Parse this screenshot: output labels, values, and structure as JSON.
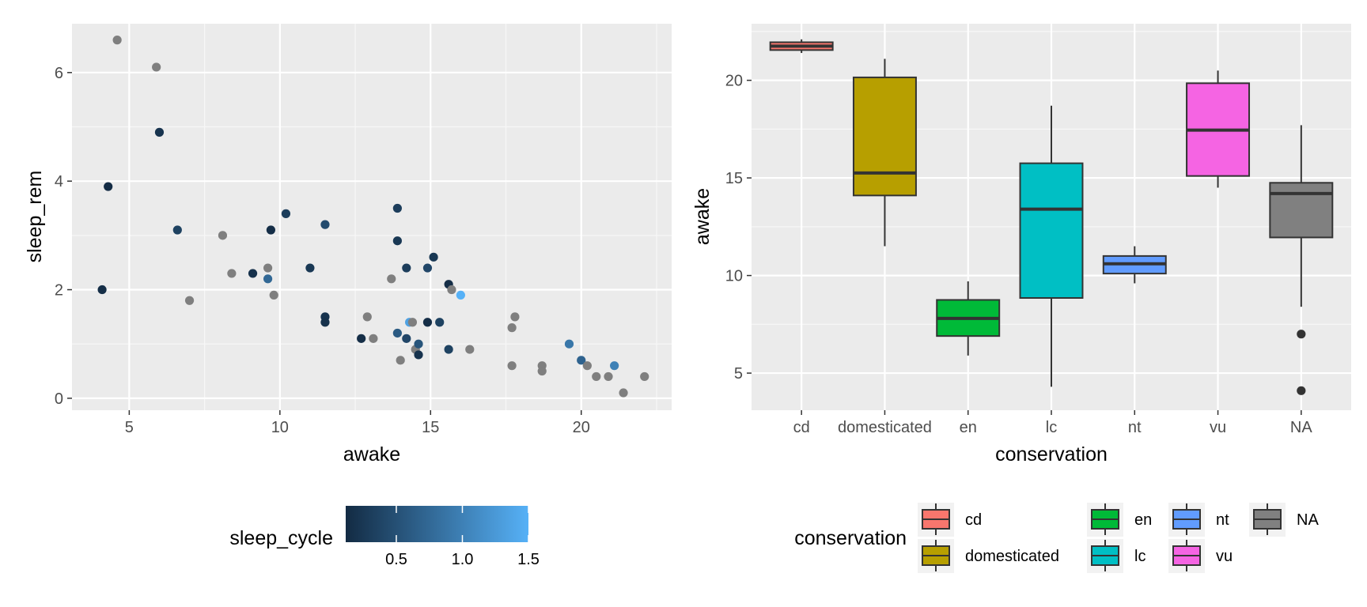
{
  "chart_data": [
    {
      "type": "scatter",
      "xlabel": "awake",
      "ylabel": "sleep_rem",
      "xlim": [
        3.1,
        23.0
      ],
      "ylim": [
        -0.22,
        6.9
      ],
      "x_ticks": [
        5,
        10,
        15,
        20
      ],
      "y_ticks": [
        0,
        2,
        4,
        6
      ],
      "grid": true,
      "colorbar": {
        "title": "sleep_cycle",
        "min": 0.117,
        "max": 1.5,
        "ticks": [
          0.5,
          1.0,
          1.5
        ],
        "tick_labels": [
          "0.5",
          "1.0",
          "1.5"
        ],
        "low_color": "#132B43",
        "high_color": "#56B1F7",
        "na_color": "#7F7F7F",
        "position": "bottom"
      },
      "points": [
        {
          "x": 4.1,
          "y": 2.0,
          "c": 0.15
        },
        {
          "x": 4.3,
          "y": 3.9,
          "c": 0.13
        },
        {
          "x": 4.6,
          "y": 6.6,
          "c": null
        },
        {
          "x": 5.9,
          "y": 6.1,
          "c": null
        },
        {
          "x": 6.0,
          "y": 4.9,
          "c": 0.2
        },
        {
          "x": 6.6,
          "y": 3.1,
          "c": 0.35
        },
        {
          "x": 7.0,
          "y": 1.8,
          "c": null
        },
        {
          "x": 8.1,
          "y": 3.0,
          "c": null
        },
        {
          "x": 8.4,
          "y": 2.3,
          "c": null
        },
        {
          "x": 9.1,
          "y": 2.3,
          "c": 0.18
        },
        {
          "x": 9.6,
          "y": 2.4,
          "c": null
        },
        {
          "x": 9.6,
          "y": 2.2,
          "c": 0.75
        },
        {
          "x": 9.7,
          "y": 3.1,
          "c": 0.15
        },
        {
          "x": 9.8,
          "y": 1.9,
          "c": null
        },
        {
          "x": 10.2,
          "y": 3.4,
          "c": 0.3
        },
        {
          "x": 11.0,
          "y": 2.4,
          "c": 0.25
        },
        {
          "x": 11.5,
          "y": 3.2,
          "c": 0.45
        },
        {
          "x": 11.5,
          "y": 1.5,
          "c": 0.2
        },
        {
          "x": 11.5,
          "y": 1.4,
          "c": 0.18
        },
        {
          "x": 12.7,
          "y": 1.1,
          "c": 0.15
        },
        {
          "x": 12.9,
          "y": 1.5,
          "c": null
        },
        {
          "x": 13.1,
          "y": 1.1,
          "c": null
        },
        {
          "x": 13.7,
          "y": 2.2,
          "c": null
        },
        {
          "x": 13.9,
          "y": 3.5,
          "c": 0.3
        },
        {
          "x": 13.9,
          "y": 2.9,
          "c": 0.25
        },
        {
          "x": 13.9,
          "y": 1.2,
          "c": 0.6
        },
        {
          "x": 14.0,
          "y": 0.7,
          "c": null
        },
        {
          "x": 14.2,
          "y": 2.4,
          "c": 0.3
        },
        {
          "x": 14.2,
          "y": 1.1,
          "c": 0.4
        },
        {
          "x": 14.3,
          "y": 1.4,
          "c": 1.35
        },
        {
          "x": 14.4,
          "y": 1.4,
          "c": null
        },
        {
          "x": 14.5,
          "y": 0.9,
          "c": null
        },
        {
          "x": 14.6,
          "y": 1.0,
          "c": 0.55
        },
        {
          "x": 14.6,
          "y": 0.8,
          "c": 0.2
        },
        {
          "x": 14.9,
          "y": 1.4,
          "c": 0.15
        },
        {
          "x": 14.9,
          "y": 2.4,
          "c": 0.4
        },
        {
          "x": 15.1,
          "y": 2.6,
          "c": 0.25
        },
        {
          "x": 15.3,
          "y": 1.4,
          "c": 0.35
        },
        {
          "x": 15.6,
          "y": 2.1,
          "c": 0.15
        },
        {
          "x": 15.6,
          "y": 0.9,
          "c": 0.35
        },
        {
          "x": 15.7,
          "y": 2.0,
          "c": null
        },
        {
          "x": 16.0,
          "y": 1.9,
          "c": 1.5
        },
        {
          "x": 16.3,
          "y": 0.9,
          "c": null
        },
        {
          "x": 17.7,
          "y": 1.3,
          "c": null
        },
        {
          "x": 17.7,
          "y": 0.6,
          "c": null
        },
        {
          "x": 17.8,
          "y": 1.5,
          "c": null
        },
        {
          "x": 18.7,
          "y": 0.6,
          "c": null
        },
        {
          "x": 18.7,
          "y": 0.5,
          "c": null
        },
        {
          "x": 19.6,
          "y": 1.0,
          "c": 0.9
        },
        {
          "x": 20.0,
          "y": 0.7,
          "c": 0.7
        },
        {
          "x": 20.2,
          "y": 0.6,
          "c": null
        },
        {
          "x": 20.5,
          "y": 0.4,
          "c": null
        },
        {
          "x": 20.9,
          "y": 0.4,
          "c": null
        },
        {
          "x": 21.1,
          "y": 0.6,
          "c": 1.0
        },
        {
          "x": 21.4,
          "y": 0.1,
          "c": null
        },
        {
          "x": 22.1,
          "y": 0.4,
          "c": null
        }
      ]
    },
    {
      "type": "box",
      "xlabel": "conservation",
      "ylabel": "awake",
      "ylim": [
        3.1,
        22.9
      ],
      "y_ticks": [
        5,
        10,
        15,
        20
      ],
      "grid": true,
      "categories": [
        "cd",
        "domesticated",
        "en",
        "lc",
        "nt",
        "vu",
        "NA"
      ],
      "legend": {
        "title": "conservation",
        "position": "bottom",
        "entries": [
          {
            "label": "cd",
            "color": "#F8766D"
          },
          {
            "label": "domesticated",
            "color": "#B79F00"
          },
          {
            "label": "en",
            "color": "#00BA38"
          },
          {
            "label": "lc",
            "color": "#00BFC4"
          },
          {
            "label": "nt",
            "color": "#619CFF"
          },
          {
            "label": "vu",
            "color": "#F564E3"
          },
          {
            "label": "NA",
            "color": "#808080"
          }
        ]
      },
      "boxes": [
        {
          "label": "cd",
          "color": "#F8766D",
          "lower_whisker": 21.4,
          "q1": 21.55,
          "median": 21.75,
          "q3": 21.95,
          "upper_whisker": 22.1,
          "outliers": []
        },
        {
          "label": "domesticated",
          "color": "#B79F00",
          "lower_whisker": 11.5,
          "q1": 14.1,
          "median": 15.25,
          "q3": 20.15,
          "upper_whisker": 21.1,
          "outliers": []
        },
        {
          "label": "en",
          "color": "#00BA38",
          "lower_whisker": 5.9,
          "q1": 6.9,
          "median": 7.8,
          "q3": 8.75,
          "upper_whisker": 9.7,
          "outliers": []
        },
        {
          "label": "lc",
          "color": "#00BFC4",
          "lower_whisker": 4.3,
          "q1": 8.85,
          "median": 13.4,
          "q3": 15.75,
          "upper_whisker": 18.7,
          "outliers": []
        },
        {
          "label": "nt",
          "color": "#619CFF",
          "lower_whisker": 9.6,
          "q1": 10.1,
          "median": 10.6,
          "q3": 11.0,
          "upper_whisker": 11.5,
          "outliers": []
        },
        {
          "label": "vu",
          "color": "#F564E3",
          "lower_whisker": 14.5,
          "q1": 15.1,
          "median": 17.45,
          "q3": 19.85,
          "upper_whisker": 20.5,
          "outliers": []
        },
        {
          "label": "NA",
          "color": "#808080",
          "lower_whisker": 8.4,
          "q1": 11.95,
          "median": 14.2,
          "q3": 14.75,
          "upper_whisker": 17.7,
          "outliers": [
            7.0,
            4.1
          ]
        }
      ]
    }
  ]
}
